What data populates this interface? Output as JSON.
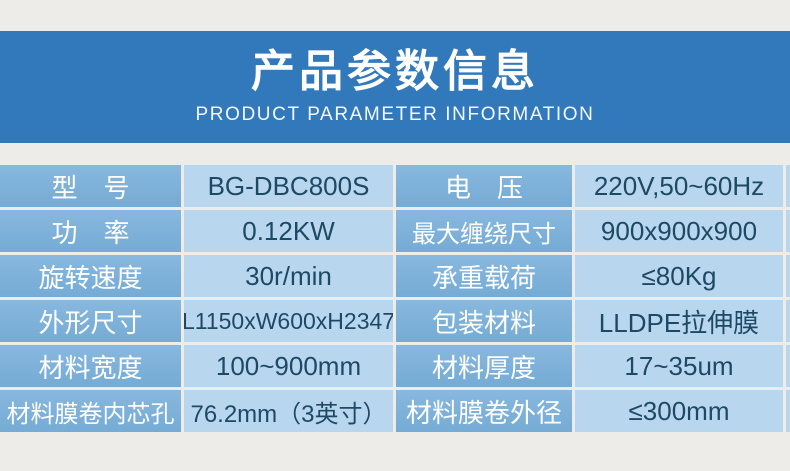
{
  "page": {
    "background_color": "#edece8"
  },
  "header": {
    "title": "产品参数信息",
    "subtitle": "PRODUCT PARAMETER INFORMATION",
    "band_color": "#3279bc",
    "text_color": "#ffffff"
  },
  "table": {
    "label_bg_color": "#7db1da",
    "value_bg_color": "#b8d7ee",
    "label_text_color": "#ffffff",
    "value_text_color": "#1e4965",
    "rows": [
      [
        "型　号",
        "BG-DBC800S",
        "电　压",
        "220V,50~60Hz"
      ],
      [
        "功　率",
        "0.12KW",
        "最大缠绕尺寸",
        "900x900x900"
      ],
      [
        "旋转速度",
        "30r/min",
        "承重载荷",
        "≤80Kg"
      ],
      [
        "外形尺寸",
        "L1150xW600xH2347",
        "包装材料",
        "LLDPE拉伸膜"
      ],
      [
        "材料宽度",
        "100~900mm",
        "材料厚度",
        "17~35um"
      ],
      [
        "材料膜卷内芯孔",
        "76.2mm（3英寸）",
        "材料膜卷外径",
        "≤300mm"
      ]
    ]
  }
}
